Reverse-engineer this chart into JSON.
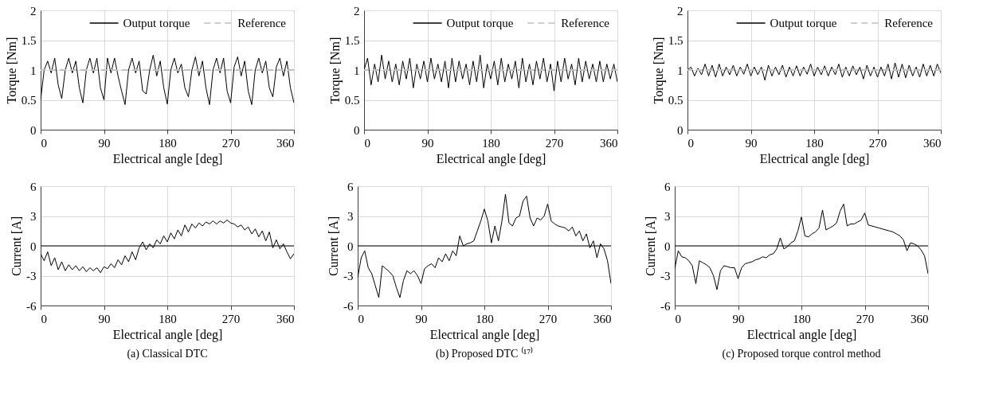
{
  "chart_data": [
    {
      "type": "line",
      "xlabel": "Electrical angle [deg]",
      "ylabel": "Torque [Nm]",
      "xlim": [
        0,
        360
      ],
      "xticks": [
        0,
        90,
        180,
        270,
        360
      ],
      "ylim": [
        0,
        2
      ],
      "yticks": [
        0,
        0.5,
        1,
        1.5,
        2
      ],
      "grid": true,
      "legend": "top right",
      "x": [
        0,
        5,
        10,
        15,
        20,
        25,
        30,
        35,
        40,
        45,
        50,
        55,
        60,
        65,
        70,
        75,
        80,
        85,
        90,
        95,
        100,
        105,
        110,
        115,
        120,
        125,
        130,
        135,
        140,
        145,
        150,
        155,
        160,
        165,
        170,
        175,
        180,
        185,
        190,
        195,
        200,
        205,
        210,
        215,
        220,
        225,
        230,
        235,
        240,
        245,
        250,
        255,
        260,
        265,
        270,
        275,
        280,
        285,
        290,
        295,
        300,
        305,
        310,
        315,
        320,
        325,
        330,
        335,
        340,
        345,
        350,
        355,
        360
      ],
      "series": [
        {
          "name": "Output torque",
          "color": "#000000",
          "line_style": "solid",
          "values": [
            0.5,
            1.0,
            1.15,
            0.95,
            1.2,
            0.75,
            0.52,
            1.0,
            1.2,
            0.95,
            1.15,
            0.7,
            0.45,
            1.0,
            1.2,
            0.95,
            1.2,
            0.7,
            0.5,
            1.2,
            0.95,
            1.2,
            0.9,
            0.65,
            0.42,
            1.0,
            1.2,
            0.95,
            1.15,
            0.65,
            0.6,
            1.0,
            1.25,
            0.9,
            1.15,
            0.7,
            0.43,
            1.0,
            1.2,
            0.95,
            1.1,
            0.7,
            0.55,
            1.0,
            1.22,
            0.9,
            1.15,
            0.7,
            0.42,
            1.0,
            1.2,
            0.95,
            1.2,
            0.65,
            0.45,
            1.05,
            1.22,
            0.9,
            1.15,
            0.65,
            0.42,
            1.0,
            1.2,
            0.95,
            1.15,
            0.7,
            0.55,
            1.05,
            1.2,
            0.9,
            1.15,
            0.7,
            0.45
          ]
        }
      ],
      "ref_lines": [
        {
          "axis": "y",
          "value": 1,
          "label": "Reference",
          "color": "#c0c0c0",
          "line_style": "dashed"
        }
      ]
    },
    {
      "type": "line",
      "xlabel": "Electrical angle [deg]",
      "ylabel": "Torque [Nm]",
      "xlim": [
        0,
        360
      ],
      "xticks": [
        0,
        90,
        180,
        270,
        360
      ],
      "ylim": [
        0,
        2
      ],
      "yticks": [
        0,
        0.5,
        1,
        1.5,
        2
      ],
      "grid": true,
      "legend": "top right",
      "x": [
        0,
        5,
        10,
        15,
        20,
        25,
        30,
        35,
        40,
        45,
        50,
        55,
        60,
        65,
        70,
        75,
        80,
        85,
        90,
        95,
        100,
        105,
        110,
        115,
        120,
        125,
        130,
        135,
        140,
        145,
        150,
        155,
        160,
        165,
        170,
        175,
        180,
        185,
        190,
        195,
        200,
        205,
        210,
        215,
        220,
        225,
        230,
        235,
        240,
        245,
        250,
        255,
        260,
        265,
        270,
        275,
        280,
        285,
        290,
        295,
        300,
        305,
        310,
        315,
        320,
        325,
        330,
        335,
        340,
        345,
        350,
        355,
        360
      ],
      "series": [
        {
          "name": "Output torque",
          "color": "#000000",
          "line_style": "solid",
          "values": [
            1.0,
            1.2,
            0.75,
            1.1,
            0.8,
            1.25,
            0.85,
            1.15,
            0.8,
            1.1,
            0.75,
            1.15,
            0.85,
            1.2,
            0.7,
            1.1,
            0.85,
            1.15,
            0.8,
            1.2,
            0.85,
            1.1,
            0.8,
            1.15,
            0.7,
            1.2,
            0.8,
            1.15,
            0.85,
            1.1,
            0.75,
            1.15,
            0.8,
            1.25,
            0.7,
            1.1,
            0.85,
            1.15,
            0.75,
            1.2,
            0.8,
            1.1,
            0.85,
            1.15,
            0.7,
            1.2,
            0.8,
            1.1,
            0.75,
            1.15,
            0.85,
            1.2,
            0.8,
            1.1,
            0.65,
            1.15,
            0.8,
            1.2,
            0.85,
            1.1,
            0.75,
            1.2,
            0.8,
            1.15,
            0.85,
            1.1,
            0.8,
            1.15,
            0.8,
            1.1,
            0.85,
            1.1,
            0.8
          ]
        }
      ],
      "ref_lines": [
        {
          "axis": "y",
          "value": 1,
          "label": "Reference",
          "color": "#c0c0c0",
          "line_style": "dashed"
        }
      ]
    },
    {
      "type": "line",
      "xlabel": "Electrical angle [deg]",
      "ylabel": "Torque [Nm]",
      "xlim": [
        0,
        360
      ],
      "xticks": [
        0,
        90,
        180,
        270,
        360
      ],
      "ylim": [
        0,
        2
      ],
      "yticks": [
        0,
        0.5,
        1,
        1.5,
        2
      ],
      "grid": true,
      "legend": "top right",
      "x": [
        0,
        5,
        10,
        15,
        20,
        25,
        30,
        35,
        40,
        45,
        50,
        55,
        60,
        65,
        70,
        75,
        80,
        85,
        90,
        95,
        100,
        105,
        110,
        115,
        120,
        125,
        130,
        135,
        140,
        145,
        150,
        155,
        160,
        165,
        170,
        175,
        180,
        185,
        190,
        195,
        200,
        205,
        210,
        215,
        220,
        225,
        230,
        235,
        240,
        245,
        250,
        255,
        260,
        265,
        270,
        275,
        280,
        285,
        290,
        295,
        300,
        305,
        310,
        315,
        320,
        325,
        330,
        335,
        340,
        345,
        350,
        355,
        360
      ],
      "series": [
        {
          "name": "Output torque",
          "color": "#000000",
          "line_style": "solid",
          "values": [
            1.0,
            1.05,
            0.9,
            1.03,
            0.92,
            1.1,
            0.9,
            1.08,
            0.88,
            1.1,
            0.9,
            1.05,
            0.92,
            1.08,
            0.9,
            1.05,
            0.93,
            1.1,
            0.9,
            1.05,
            0.92,
            1.05,
            0.83,
            1.08,
            0.9,
            1.05,
            0.92,
            1.08,
            0.88,
            1.05,
            0.9,
            1.07,
            0.9,
            1.05,
            0.93,
            1.1,
            0.9,
            1.05,
            0.92,
            1.07,
            0.9,
            1.05,
            0.92,
            1.1,
            0.88,
            1.05,
            0.9,
            1.07,
            0.92,
            1.05,
            0.85,
            1.08,
            0.9,
            1.05,
            0.88,
            1.05,
            0.9,
            1.1,
            0.85,
            1.12,
            0.88,
            1.1,
            0.87,
            1.08,
            0.9,
            1.05,
            0.88,
            1.1,
            0.9,
            1.08,
            0.9,
            1.1,
            0.95
          ]
        }
      ],
      "ref_lines": [
        {
          "axis": "y",
          "value": 1,
          "label": "Reference",
          "color": "#c0c0c0",
          "line_style": "dashed"
        }
      ]
    },
    {
      "type": "line",
      "xlabel": "Electrical angle [deg]",
      "ylabel": "Current [A]",
      "xlim": [
        0,
        360
      ],
      "xticks": [
        0,
        90,
        180,
        270,
        360
      ],
      "ylim": [
        -6,
        6
      ],
      "yticks": [
        -6,
        -3,
        0,
        3,
        6
      ],
      "grid": true,
      "ref_lines": [
        {
          "axis": "y",
          "value": 0,
          "color": "#000000"
        }
      ],
      "annotations": [
        "(a) Classical DTC"
      ],
      "x": [
        0,
        5,
        10,
        15,
        20,
        25,
        30,
        35,
        40,
        45,
        50,
        55,
        60,
        65,
        70,
        75,
        80,
        85,
        90,
        95,
        100,
        105,
        110,
        115,
        120,
        125,
        130,
        135,
        140,
        145,
        150,
        155,
        160,
        165,
        170,
        175,
        180,
        185,
        190,
        195,
        200,
        205,
        210,
        215,
        220,
        225,
        230,
        235,
        240,
        245,
        250,
        255,
        260,
        265,
        270,
        275,
        280,
        285,
        290,
        295,
        300,
        305,
        310,
        315,
        320,
        325,
        330,
        335,
        340,
        345,
        350,
        355,
        360
      ],
      "series": [
        {
          "color": "#000000",
          "values": [
            -0.8,
            -1.5,
            -0.6,
            -2.0,
            -1.2,
            -2.4,
            -1.6,
            -2.5,
            -1.9,
            -2.4,
            -2.0,
            -2.5,
            -2.1,
            -2.6,
            -2.2,
            -2.5,
            -2.2,
            -2.7,
            -2.1,
            -2.3,
            -1.8,
            -2.2,
            -1.4,
            -1.9,
            -1.0,
            -1.6,
            -0.6,
            -1.4,
            -0.2,
            0.4,
            -0.4,
            0.2,
            -0.2,
            0.6,
            0.2,
            1.0,
            0.4,
            1.3,
            0.7,
            1.6,
            1.0,
            2.1,
            1.4,
            2.2,
            1.8,
            2.3,
            2.0,
            2.4,
            2.2,
            2.5,
            2.2,
            2.5,
            2.3,
            2.6,
            2.3,
            2.2,
            1.9,
            2.1,
            1.6,
            1.9,
            1.2,
            1.7,
            0.9,
            1.5,
            0.5,
            1.4,
            -0.2,
            0.6,
            -0.3,
            0.2,
            -0.6,
            -1.3,
            -0.8
          ]
        }
      ]
    },
    {
      "type": "line",
      "xlabel": "Electrical angle [deg]",
      "ylabel": "Current [A]",
      "xlim": [
        0,
        360
      ],
      "xticks": [
        0,
        90,
        180,
        270,
        360
      ],
      "ylim": [
        -6,
        6
      ],
      "yticks": [
        -6,
        -3,
        0,
        3,
        6
      ],
      "grid": true,
      "ref_lines": [
        {
          "axis": "y",
          "value": 0,
          "color": "#000000"
        }
      ],
      "annotations": [
        "(b) Proposed DTC ⁽¹⁷⁾"
      ],
      "x": [
        0,
        5,
        10,
        15,
        20,
        25,
        30,
        35,
        40,
        45,
        50,
        55,
        60,
        65,
        70,
        75,
        80,
        85,
        90,
        95,
        100,
        105,
        110,
        115,
        120,
        125,
        130,
        135,
        140,
        145,
        150,
        155,
        160,
        165,
        170,
        175,
        180,
        185,
        190,
        195,
        200,
        205,
        210,
        215,
        220,
        225,
        230,
        235,
        240,
        245,
        250,
        255,
        260,
        265,
        270,
        275,
        280,
        285,
        290,
        295,
        300,
        305,
        310,
        315,
        320,
        325,
        330,
        335,
        340,
        345,
        350,
        355,
        360
      ],
      "series": [
        {
          "color": "#000000",
          "values": [
            -3.2,
            -1.2,
            -0.5,
            -2.2,
            -2.8,
            -4.0,
            -5.2,
            -2.0,
            -2.3,
            -2.6,
            -3.0,
            -4.2,
            -5.2,
            -3.5,
            -2.5,
            -2.8,
            -2.5,
            -3.0,
            -3.8,
            -2.3,
            -2.0,
            -1.8,
            -2.2,
            -1.2,
            -1.6,
            -0.8,
            -1.5,
            -0.5,
            -1.0,
            1.0,
            0.0,
            0.2,
            0.3,
            0.5,
            1.5,
            2.5,
            3.7,
            2.5,
            0.3,
            2.0,
            0.5,
            2.5,
            5.2,
            2.3,
            2.0,
            2.8,
            3.0,
            4.5,
            5.0,
            2.8,
            2.0,
            2.8,
            2.6,
            3.0,
            4.2,
            2.5,
            2.2,
            2.0,
            1.9,
            1.8,
            1.5,
            1.9,
            1.0,
            1.5,
            0.5,
            1.2,
            -0.2,
            0.5,
            -1.2,
            0.2,
            -0.3,
            -1.5,
            -3.8
          ]
        }
      ]
    },
    {
      "type": "line",
      "xlabel": "Electrical angle [deg]",
      "ylabel": "Current [A]",
      "xlim": [
        0,
        360
      ],
      "xticks": [
        0,
        90,
        180,
        270,
        360
      ],
      "ylim": [
        -6,
        6
      ],
      "yticks": [
        -6,
        -3,
        0,
        3,
        6
      ],
      "grid": true,
      "ref_lines": [
        {
          "axis": "y",
          "value": 0,
          "color": "#000000"
        }
      ],
      "annotations": [
        "(c) Proposed torque control method"
      ],
      "x": [
        0,
        5,
        10,
        15,
        20,
        25,
        30,
        35,
        40,
        45,
        50,
        55,
        60,
        65,
        70,
        75,
        80,
        85,
        90,
        95,
        100,
        105,
        110,
        115,
        120,
        125,
        130,
        135,
        140,
        145,
        150,
        155,
        160,
        165,
        170,
        175,
        180,
        185,
        190,
        195,
        200,
        205,
        210,
        215,
        220,
        225,
        230,
        235,
        240,
        245,
        250,
        255,
        260,
        265,
        270,
        275,
        280,
        285,
        290,
        295,
        300,
        305,
        310,
        315,
        320,
        325,
        330,
        335,
        340,
        345,
        350,
        355,
        360
      ],
      "series": [
        {
          "color": "#000000",
          "values": [
            -2.3,
            -0.5,
            -1.1,
            -1.2,
            -1.5,
            -2.0,
            -3.8,
            -1.5,
            -1.7,
            -1.9,
            -2.2,
            -3.0,
            -4.4,
            -2.5,
            -2.0,
            -2.1,
            -2.2,
            -2.2,
            -3.3,
            -2.2,
            -1.8,
            -1.7,
            -1.6,
            -1.4,
            -1.3,
            -1.1,
            -1.2,
            -0.9,
            -0.8,
            -0.3,
            0.8,
            -0.3,
            -0.1,
            0.3,
            0.5,
            1.5,
            2.9,
            1.0,
            0.9,
            1.2,
            1.4,
            1.8,
            3.6,
            1.6,
            1.8,
            2.0,
            2.3,
            3.5,
            4.2,
            2.0,
            2.2,
            2.2,
            2.4,
            2.6,
            3.3,
            2.1,
            2.0,
            1.9,
            1.8,
            1.7,
            1.6,
            1.5,
            1.4,
            1.2,
            1.0,
            0.6,
            -0.5,
            0.3,
            0.2,
            0.0,
            -0.4,
            -1.0,
            -2.8
          ]
        }
      ]
    }
  ]
}
